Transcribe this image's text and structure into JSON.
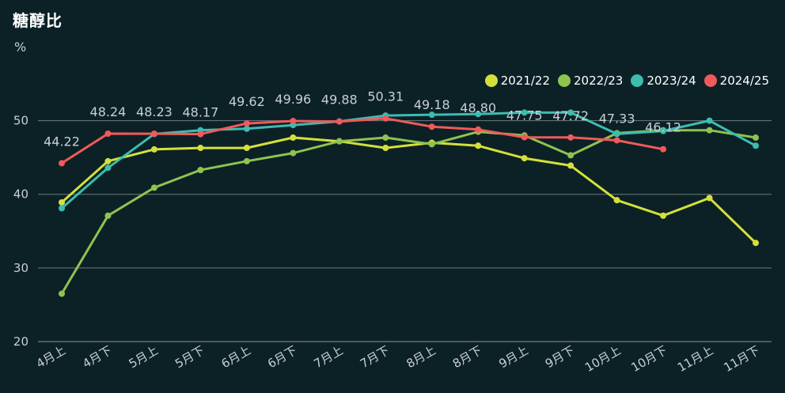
{
  "chart_data": {
    "type": "line",
    "title": "糖醇比",
    "ylabel": "%",
    "xlabel": "",
    "ylim": [
      20,
      55
    ],
    "yticks": [
      20,
      30,
      40,
      50
    ],
    "grid": true,
    "legend_position": "top-right",
    "categories": [
      "4月上",
      "4月下",
      "5月上",
      "5月下",
      "6月上",
      "6月下",
      "7月上",
      "7月下",
      "8月上",
      "8月下",
      "9月上",
      "9月下",
      "10月上",
      "10月下",
      "11月上",
      "11月下"
    ],
    "series": [
      {
        "name": "2021/22",
        "color": "#d4e03a",
        "values": [
          38.9,
          44.5,
          46.1,
          46.3,
          46.3,
          47.7,
          47.2,
          46.3,
          47.0,
          46.6,
          44.9,
          43.9,
          39.2,
          37.1,
          39.5,
          33.4
        ]
      },
      {
        "name": "2022/23",
        "color": "#8fc350",
        "values": [
          26.5,
          37.1,
          40.9,
          43.3,
          44.5,
          45.6,
          47.2,
          47.7,
          46.8,
          48.5,
          48.0,
          45.3,
          48.3,
          48.7,
          48.7,
          47.7
        ]
      },
      {
        "name": "2023/24",
        "color": "#3dbcb0",
        "values": [
          38.1,
          43.6,
          48.2,
          48.7,
          48.9,
          49.4,
          49.9,
          50.7,
          50.8,
          50.9,
          51.1,
          51.1,
          48.2,
          48.6,
          50.0,
          46.6
        ]
      },
      {
        "name": "2024/25",
        "color": "#f05a5a",
        "values": [
          44.22,
          48.24,
          48.23,
          48.17,
          49.62,
          49.96,
          49.88,
          50.31,
          49.18,
          48.8,
          47.75,
          47.72,
          47.33,
          46.12,
          null,
          null
        ]
      }
    ],
    "data_labels": {
      "series": "2024/25",
      "labels": [
        "44.22",
        "48.24",
        "48.23",
        "48.17",
        "49.62",
        "49.96",
        "49.88",
        "50.31",
        "49.18",
        "48.80",
        "47.75",
        "47.72",
        "47.33",
        "46.12"
      ]
    }
  }
}
